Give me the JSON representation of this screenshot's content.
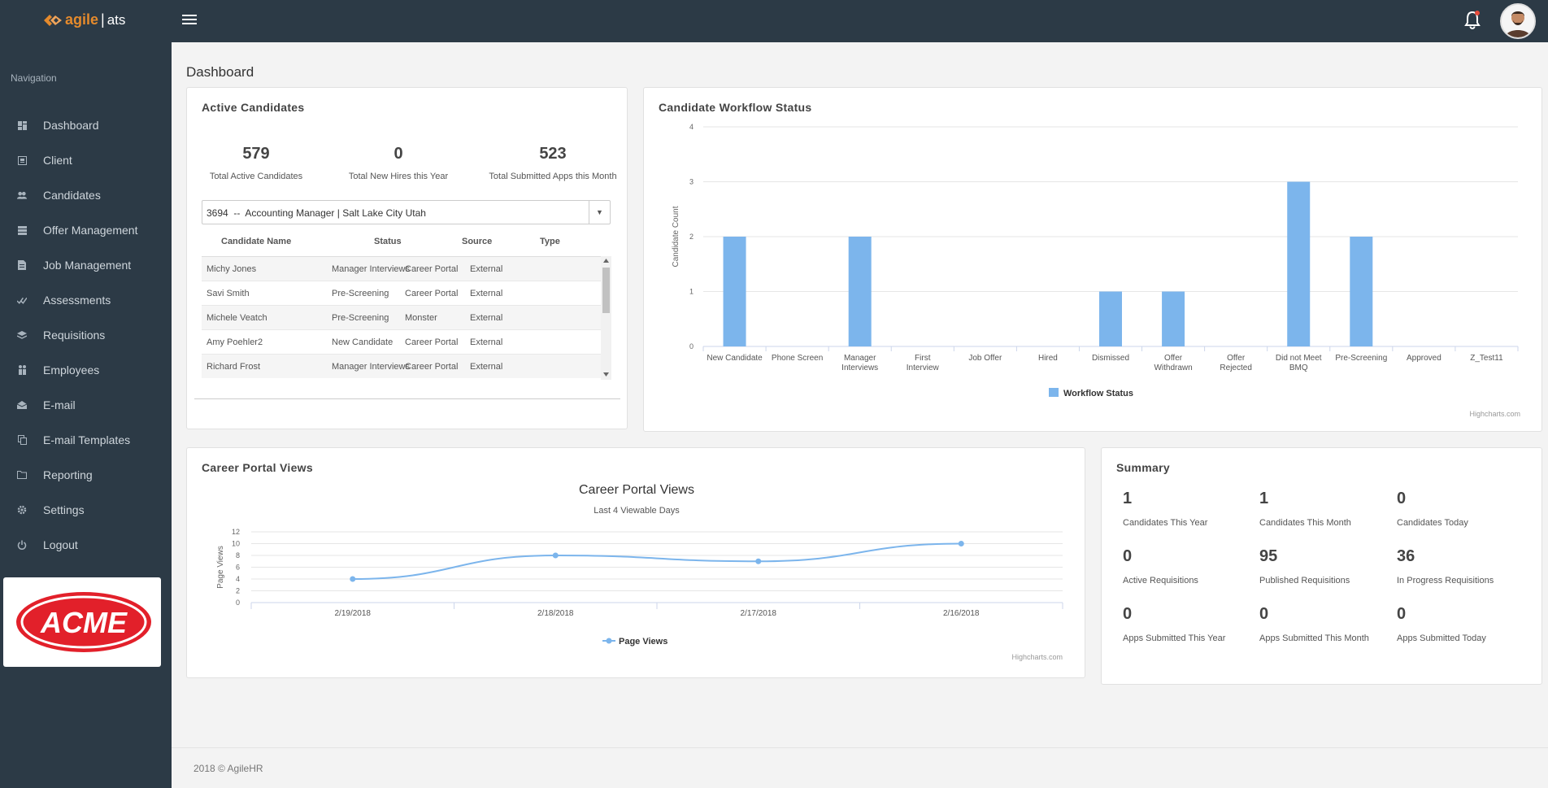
{
  "header": {
    "logo_brand": "agile",
    "logo_sep": "|",
    "logo_product": "ats"
  },
  "sidebar": {
    "heading": "Navigation",
    "items": [
      {
        "label": "Dashboard",
        "icon": "dashboard-icon"
      },
      {
        "label": "Client",
        "icon": "client-icon"
      },
      {
        "label": "Candidates",
        "icon": "users-icon"
      },
      {
        "label": "Offer Management",
        "icon": "list-icon"
      },
      {
        "label": "Job Management",
        "icon": "document-icon"
      },
      {
        "label": "Assessments",
        "icon": "check-icon"
      },
      {
        "label": "Requisitions",
        "icon": "layers-icon"
      },
      {
        "label": "Employees",
        "icon": "people-icon"
      },
      {
        "label": "E-mail",
        "icon": "envelope-icon"
      },
      {
        "label": "E-mail Templates",
        "icon": "copy-icon"
      },
      {
        "label": "Reporting",
        "icon": "folder-icon"
      },
      {
        "label": "Settings",
        "icon": "gear-icon"
      },
      {
        "label": "Logout",
        "icon": "power-icon"
      }
    ],
    "client_logo_text": "ACME"
  },
  "main": {
    "title": "Dashboard"
  },
  "active_candidates": {
    "title": "Active Candidates",
    "stats": [
      {
        "value": "579",
        "label": "Total Active Candidates"
      },
      {
        "value": "0",
        "label": "Total New Hires this Year"
      },
      {
        "value": "523",
        "label": "Total Submitted Apps this Month"
      }
    ],
    "job_select": "3694  --  Accounting Manager | Salt Lake City Utah",
    "columns": [
      "Candidate Name",
      "Status",
      "Source",
      "Type"
    ],
    "rows": [
      [
        "Michy Jones",
        "Manager Interviews",
        "Career Portal",
        "External"
      ],
      [
        "Savi Smith",
        "Pre-Screening",
        "Career Portal",
        "External"
      ],
      [
        "Michele Veatch",
        "Pre-Screening",
        "Monster",
        "External"
      ],
      [
        "Amy Poehler2",
        "New Candidate",
        "Career Portal",
        "External"
      ],
      [
        "Richard Frost",
        "Manager Interviews",
        "Career Portal",
        "External"
      ]
    ]
  },
  "workflow": {
    "title": "Candidate Workflow Status",
    "credit": "Highcharts.com"
  },
  "portal_views": {
    "title": "Career Portal Views",
    "credit": "Highcharts.com"
  },
  "summary": {
    "title": "Summary",
    "items": [
      {
        "value": "1",
        "label": "Candidates This Year"
      },
      {
        "value": "1",
        "label": "Candidates This Month"
      },
      {
        "value": "0",
        "label": "Candidates Today"
      },
      {
        "value": "0",
        "label": "Active Requisitions"
      },
      {
        "value": "95",
        "label": "Published Requisitions"
      },
      {
        "value": "36",
        "label": "In Progress Requisitions"
      },
      {
        "value": "0",
        "label": "Apps Submitted This Year"
      },
      {
        "value": "0",
        "label": "Apps Submitted This Month"
      },
      {
        "value": "0",
        "label": "Apps Submitted Today"
      }
    ]
  },
  "footer": {
    "text": "2018 © AgileHR"
  },
  "colors": {
    "sidebar_bg": "#2c3a46",
    "accent": "#e58a2c",
    "bar": "#7cb5ec"
  },
  "chart_data": [
    {
      "type": "bar",
      "title": "",
      "categories": [
        "New Candidate",
        "Phone Screen",
        "Manager Interviews",
        "First Interview",
        "Job Offer",
        "Hired",
        "Dismissed",
        "Offer Withdrawn",
        "Offer Rejected",
        "Did not Meet BMQ",
        "Pre-Screening",
        "Approved",
        "Z_Test11"
      ],
      "series": [
        {
          "name": "Workflow Status",
          "values": [
            2,
            0,
            2,
            0,
            0,
            0,
            1,
            1,
            0,
            3,
            2,
            0,
            0
          ]
        }
      ],
      "xlabel": "",
      "ylabel": "Candidate Count",
      "ylim": [
        0,
        4
      ],
      "yticks": [
        0,
        1,
        2,
        3,
        4
      ],
      "grid": true,
      "legend": "bottom-center"
    },
    {
      "type": "line",
      "title": "Career Portal Views",
      "subtitle": "Last 4 Viewable Days",
      "categories": [
        "2/19/2018",
        "2/18/2018",
        "2/17/2018",
        "2/16/2018"
      ],
      "series": [
        {
          "name": "Page Views",
          "values": [
            4,
            8,
            7,
            10
          ]
        }
      ],
      "xlabel": "",
      "ylabel": "Page Views",
      "ylim": [
        0,
        12
      ],
      "yticks": [
        0,
        2,
        4,
        6,
        8,
        10,
        12
      ],
      "grid": true,
      "legend": "bottom-center"
    }
  ]
}
